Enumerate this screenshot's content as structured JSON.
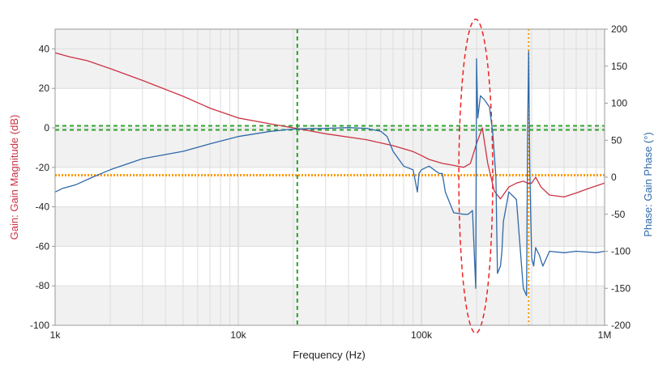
{
  "chart_data": {
    "type": "line",
    "xlabel": "Frequency (Hz)",
    "ylabel_left": "Gain: Gain Magnitude (dB)",
    "ylabel_right": "Phase: Gain Phase (°)",
    "x_scale": "log",
    "xlim": [
      1000,
      1000000
    ],
    "ylim_left": [
      -100,
      50
    ],
    "ylim_right": [
      -200,
      200
    ],
    "x_ticks": [
      {
        "value": 1000,
        "label": "1k"
      },
      {
        "value": 10000,
        "label": "10k"
      },
      {
        "value": 100000,
        "label": "100k"
      },
      {
        "value": 1000000,
        "label": "1M"
      }
    ],
    "y_ticks_left": [
      40,
      20,
      0,
      -20,
      -40,
      -60,
      -80,
      -100
    ],
    "y_ticks_right": [
      200,
      150,
      100,
      50,
      0,
      -50,
      -100,
      -150,
      -200
    ],
    "grid": true,
    "colors": {
      "gain": "#cc3344",
      "phase": "#2f69a8",
      "crossover_markers": "#2ca02c",
      "phase_crossover_markers": "#ff9900",
      "highlight_ellipse": "#ee2222",
      "band_fill": "#f1f1f1",
      "grid_line": "#dddddd"
    },
    "series": [
      {
        "axis": "left",
        "x": [
          1000,
          1200,
          1500,
          2000,
          3000,
          5000,
          7000,
          10000,
          15000,
          20000,
          30000,
          50000,
          70000,
          90000,
          100000,
          110000,
          130000,
          150000,
          170000,
          185000,
          200000,
          215000,
          230000,
          250000,
          270000,
          300000,
          330000,
          360000,
          380000,
          400000,
          420000,
          450000,
          500000,
          600000,
          700000,
          800000,
          1000000
        ],
        "values": [
          38,
          36,
          34,
          30,
          24,
          16,
          10,
          5,
          2,
          0,
          -3,
          -6,
          -9,
          -12,
          -14,
          -16,
          -18,
          -19,
          -20,
          -18,
          -8,
          0,
          -18,
          -32,
          -36,
          -30,
          -28,
          -27,
          -28,
          -28,
          -25,
          -30,
          -34,
          -35,
          -33,
          -31,
          -28
        ]
      },
      {
        "axis": "right",
        "x": [
          1000,
          1100,
          1300,
          1600,
          2000,
          3000,
          5000,
          7000,
          10000,
          15000,
          20000,
          30000,
          40000,
          50000,
          60000,
          65000,
          70000,
          80000,
          90000,
          95000,
          97000,
          100000,
          110000,
          125000,
          130000,
          135000,
          150000,
          170000,
          180000,
          190000,
          198000,
          200000,
          203000,
          210000,
          220000,
          235000,
          245000,
          255000,
          260000,
          270000,
          275000,
          280000,
          290000,
          300000,
          330000,
          360000,
          375000,
          380000,
          385000,
          390000,
          395000,
          400000,
          410000,
          420000,
          440000,
          460000,
          480000,
          500000,
          600000,
          700000,
          800000,
          900000,
          1000000
        ],
        "values": [
          -20,
          -15,
          -10,
          0,
          10,
          25,
          35,
          45,
          55,
          62,
          65,
          66,
          67,
          66,
          62,
          55,
          35,
          15,
          10,
          -20,
          5,
          10,
          15,
          5,
          5,
          -20,
          -48,
          -50,
          -50,
          -45,
          -150,
          160,
          80,
          110,
          105,
          95,
          60,
          0,
          -130,
          -120,
          -100,
          -60,
          -40,
          -20,
          -30,
          -150,
          -160,
          60,
          170,
          20,
          -50,
          -110,
          -120,
          -95,
          -105,
          -120,
          -110,
          -100,
          -102,
          -100,
          -101,
          -102,
          -100
        ]
      }
    ],
    "annotations": [
      {
        "type": "vline",
        "x": 21000,
        "color": "green"
      },
      {
        "type": "hline",
        "axis": "left",
        "y": -1,
        "color": "green"
      },
      {
        "type": "hline",
        "axis": "left",
        "y": 1,
        "color": "green"
      },
      {
        "type": "vline",
        "x": 385000,
        "color": "orange"
      },
      {
        "type": "hline",
        "axis": "left",
        "y": -24,
        "color": "orange"
      },
      {
        "type": "ellipse",
        "x_range": [
          160000,
          245000
        ],
        "y_range_left": [
          -104,
          55
        ],
        "color": "red"
      }
    ]
  }
}
